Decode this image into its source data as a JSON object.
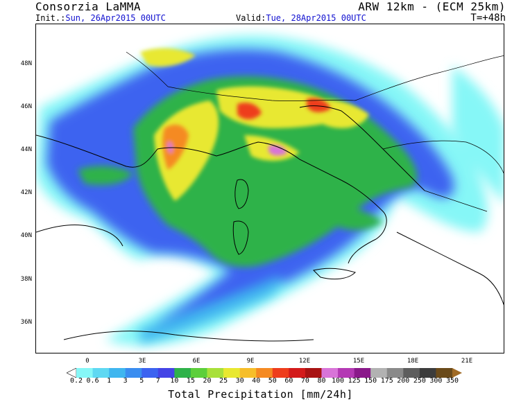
{
  "header": {
    "org": "Consorzia LaMMA",
    "model": "ARW 12km - (ECM 25km)",
    "init_label": "Init.:",
    "init_value": "Sun, 26Apr2015 00UTC",
    "valid_label": "Valid:",
    "valid_value": "Tue, 28Apr2015 00UTC",
    "step": "T=+48h"
  },
  "map": {
    "lat_labels": [
      "48N",
      "46N",
      "44N",
      "42N",
      "40N",
      "38N",
      "36N"
    ],
    "lon_labels": [
      "0",
      "3E",
      "6E",
      "9E",
      "12E",
      "15E",
      "18E",
      "21E"
    ]
  },
  "legend": {
    "title": "Total Precipitation [mm/24h]",
    "levels": [
      "0.2",
      "0.6",
      "1",
      "3",
      "5",
      "7",
      "10",
      "15",
      "20",
      "25",
      "30",
      "40",
      "50",
      "60",
      "70",
      "80",
      "100",
      "125",
      "150",
      "175",
      "200",
      "250",
      "300",
      "350"
    ],
    "colors": [
      "#86f7f7",
      "#5fd8f2",
      "#3fb6ef",
      "#3a8df0",
      "#3c63f0",
      "#4444e6",
      "#2fb24a",
      "#5ccf3b",
      "#a8e03a",
      "#e8e830",
      "#f6be2a",
      "#f58a22",
      "#ee3d1c",
      "#d31a1a",
      "#a81212",
      "#d874d8",
      "#b43ab4",
      "#8a1a8a",
      "#b2b2b2",
      "#8a8a8a",
      "#5e5e5e",
      "#3c3c3c",
      "#6a4a1a",
      "#8a5a1c",
      "#a06a24"
    ]
  }
}
